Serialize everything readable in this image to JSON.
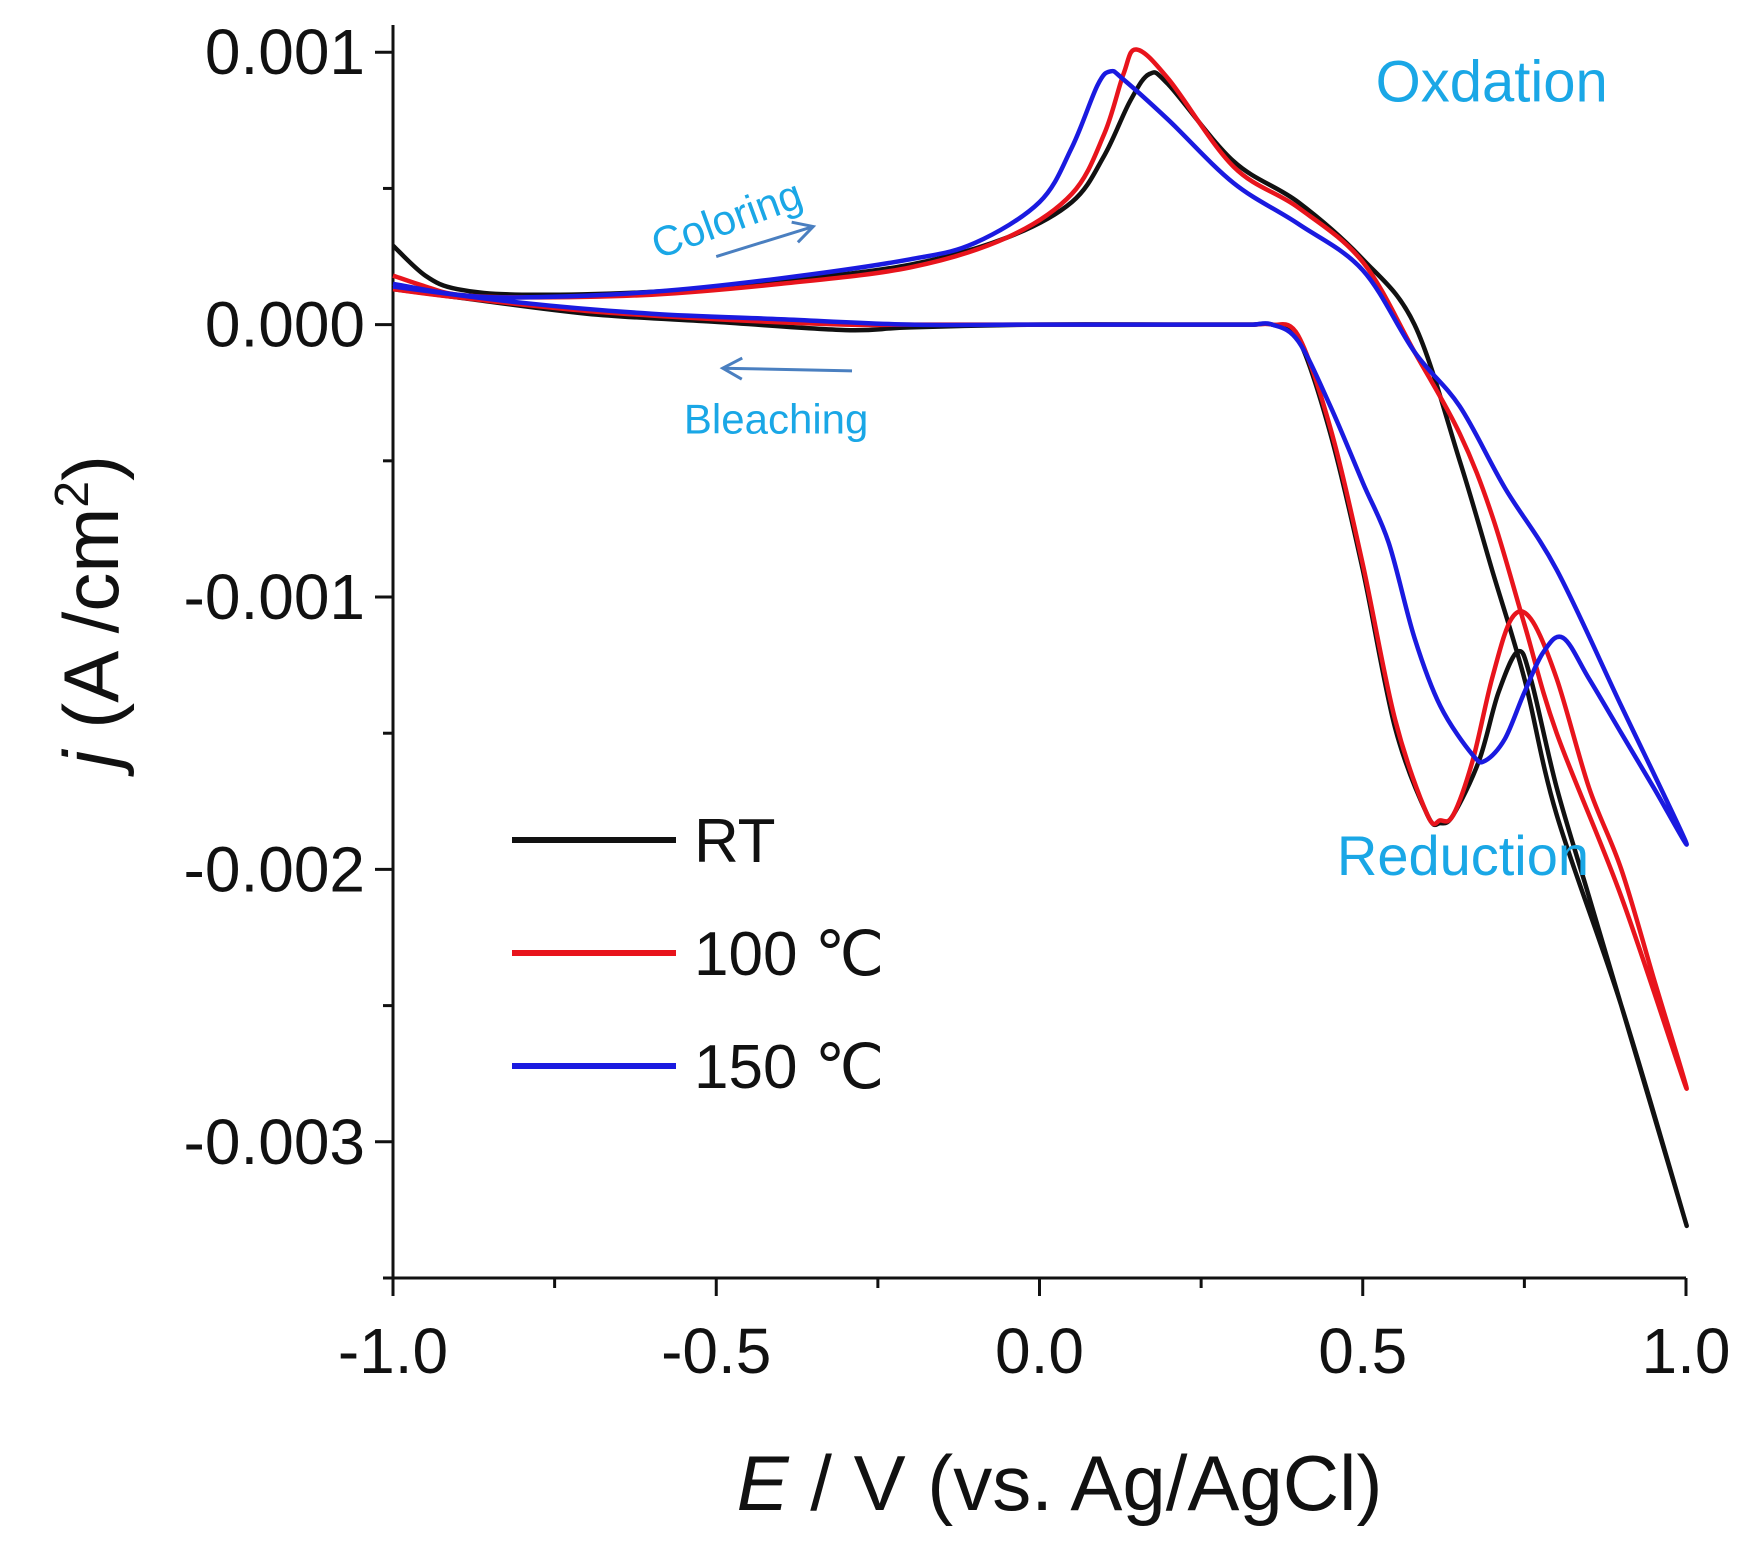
{
  "chart_data": {
    "type": "line",
    "title": "",
    "xlabel_symbol": "E",
    "xlabel_rest": " / V (vs. Ag/AgCl)",
    "ylabel_symbol": "j",
    "ylabel_rest": "(A /cm",
    "ylabel_sup": "2",
    "ylabel_close": ")",
    "xlim": [
      -1.0,
      1.0
    ],
    "ylim": [
      -0.0035,
      0.0011
    ],
    "x_ticks": [
      -1.0,
      -0.5,
      0.0,
      0.5,
      1.0
    ],
    "x_tick_labels": [
      "-1.0",
      "-0.5",
      "0.0",
      "0.5",
      "1.0"
    ],
    "x_minor_ticks": [
      -0.75,
      -0.25,
      0.25,
      0.75
    ],
    "y_ticks": [
      0.001,
      0.0,
      -0.001,
      -0.002,
      -0.003
    ],
    "y_tick_labels": [
      "0.001",
      "0.000",
      "-0.001",
      "-0.002",
      "-0.003"
    ],
    "y_minor_ticks": [
      0.0005,
      -0.0005,
      -0.0015,
      -0.0025,
      -0.0035
    ],
    "grid": false,
    "legend_position": "bottom-left",
    "series": [
      {
        "name": "RT",
        "color": "#111111",
        "x": [
          -1.0,
          -0.95,
          -0.9,
          -0.8,
          -0.6,
          -0.4,
          -0.2,
          -0.05,
          0.05,
          0.1,
          0.14,
          0.17,
          0.2,
          0.3,
          0.4,
          0.5,
          0.58,
          0.65,
          0.7,
          0.75,
          0.8,
          0.9,
          1.0,
          0.95,
          0.9,
          0.85,
          0.8,
          0.76,
          0.74,
          0.71,
          0.68,
          0.64,
          0.62,
          0.6,
          0.55,
          0.5,
          0.45,
          0.4,
          0.36,
          0.33,
          0.3,
          0.2,
          0.0,
          -0.2,
          -0.3,
          -0.5,
          -0.7,
          -0.9,
          -1.0
        ],
        "y": [
          0.00029,
          0.00018,
          0.00013,
          0.00011,
          0.00012,
          0.00016,
          0.00022,
          0.00032,
          0.00045,
          0.00062,
          0.00082,
          0.00092,
          0.00088,
          0.0006,
          0.00045,
          0.00024,
          0.0,
          -0.0005,
          -0.0009,
          -0.0013,
          -0.0018,
          -0.0025,
          -0.0033,
          -0.0029,
          -0.0025,
          -0.0021,
          -0.0017,
          -0.0013,
          -0.0012,
          -0.00135,
          -0.0016,
          -0.0018,
          -0.00183,
          -0.0018,
          -0.00148,
          -0.0009,
          -0.0004,
          -5e-05,
          0.0,
          0.0,
          0.0,
          0.0,
          0.0,
          -1e-05,
          -2e-05,
          1e-05,
          4e-05,
          0.0001,
          0.00013
        ]
      },
      {
        "name": "100 ℃",
        "color": "#e8141c",
        "x": [
          -1.0,
          -0.95,
          -0.9,
          -0.8,
          -0.6,
          -0.4,
          -0.2,
          -0.05,
          0.05,
          0.1,
          0.13,
          0.15,
          0.2,
          0.3,
          0.4,
          0.5,
          0.58,
          0.65,
          0.7,
          0.75,
          0.8,
          0.9,
          1.0,
          0.95,
          0.9,
          0.85,
          0.8,
          0.76,
          0.73,
          0.7,
          0.67,
          0.64,
          0.62,
          0.6,
          0.55,
          0.5,
          0.45,
          0.4,
          0.36,
          0.33,
          0.3,
          0.2,
          0.0,
          -0.2,
          -0.3,
          -0.5,
          -0.7,
          -0.9,
          -1.0
        ],
        "y": [
          0.00018,
          0.00014,
          0.00011,
          0.0001,
          0.00011,
          0.00015,
          0.00021,
          0.00032,
          0.00048,
          0.0007,
          0.00092,
          0.00101,
          0.0009,
          0.00058,
          0.00043,
          0.00023,
          -0.0001,
          -0.0004,
          -0.0007,
          -0.0011,
          -0.0015,
          -0.0021,
          -0.0028,
          -0.0024,
          -0.002,
          -0.0017,
          -0.0013,
          -0.00108,
          -0.00108,
          -0.0013,
          -0.0016,
          -0.0018,
          -0.00182,
          -0.0018,
          -0.00145,
          -0.00088,
          -0.00038,
          -4e-05,
          0.0,
          0.0,
          0.0,
          0.0,
          0.0,
          0.0,
          0.0,
          2e-05,
          5e-05,
          0.0001,
          0.00013
        ]
      },
      {
        "name": "150 ℃",
        "color": "#1a1ae0",
        "x": [
          -1.0,
          -0.9,
          -0.8,
          -0.6,
          -0.4,
          -0.2,
          -0.1,
          0.0,
          0.05,
          0.09,
          0.11,
          0.13,
          0.2,
          0.3,
          0.4,
          0.5,
          0.58,
          0.65,
          0.72,
          0.8,
          0.9,
          1.0,
          0.95,
          0.9,
          0.85,
          0.81,
          0.78,
          0.75,
          0.72,
          0.69,
          0.67,
          0.62,
          0.58,
          0.54,
          0.5,
          0.45,
          0.4,
          0.36,
          0.33,
          0.3,
          0.2,
          0.0,
          -0.2,
          -0.4,
          -0.6,
          -0.8,
          -1.0
        ],
        "y": [
          0.00015,
          0.00011,
          0.0001,
          0.00012,
          0.00017,
          0.00024,
          0.0003,
          0.00045,
          0.00065,
          0.00088,
          0.00093,
          0.0009,
          0.00075,
          0.00052,
          0.00037,
          0.0002,
          -0.0001,
          -0.0003,
          -0.0006,
          -0.0009,
          -0.0014,
          -0.0019,
          -0.0017,
          -0.0015,
          -0.0013,
          -0.00115,
          -0.0012,
          -0.00135,
          -0.00152,
          -0.0016,
          -0.00158,
          -0.0014,
          -0.00115,
          -0.0008,
          -0.00058,
          -0.0003,
          -6e-05,
          0.0,
          0.0,
          0.0,
          0.0,
          0.0,
          0.0,
          2e-05,
          4e-05,
          8e-05,
          0.00014
        ]
      }
    ],
    "annotations": [
      {
        "name": "oxidation",
        "text": "Oxdation",
        "x": 0.52,
        "y": 0.00082,
        "size": 58,
        "rotate": 0
      },
      {
        "name": "reduction",
        "text": "Reduction",
        "x": 0.46,
        "y": -0.00202,
        "size": 56,
        "rotate": 0
      },
      {
        "name": "coloring",
        "text": "Coloring",
        "x": -0.59,
        "y": 0.00024,
        "size": 42,
        "rotate": -20
      },
      {
        "name": "bleaching",
        "text": "Bleaching",
        "x": -0.55,
        "y": -0.0004,
        "size": 42,
        "rotate": 0
      }
    ],
    "arrows": [
      {
        "name": "coloring-arrow",
        "from": [
          -0.5,
          0.00025
        ],
        "to": [
          -0.35,
          0.00036
        ],
        "color": "#4a7fc0"
      },
      {
        "name": "bleaching-arrow",
        "from": [
          -0.29,
          -0.00017
        ],
        "to": [
          -0.49,
          -0.00016
        ],
        "color": "#4a7fc0"
      }
    ]
  }
}
